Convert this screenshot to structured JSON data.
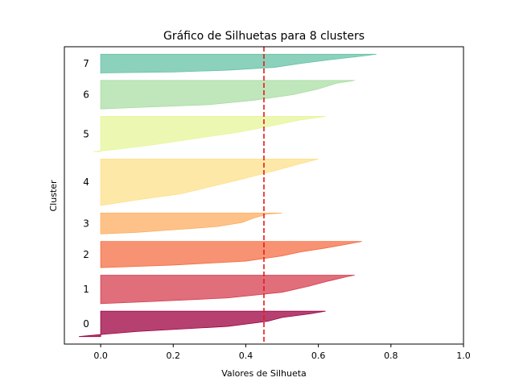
{
  "chart_data": {
    "type": "area",
    "title": "Gráfico de Silhuetas para 8 clusters",
    "xlabel": "Valores de Silhueta",
    "ylabel": "Cluster",
    "xlim": [
      -0.1,
      1.0
    ],
    "x_ticks": [
      0.0,
      0.2,
      0.4,
      0.6,
      0.8,
      1.0
    ],
    "x_tick_labels": [
      "0.0",
      "0.2",
      "0.4",
      "0.6",
      "0.8",
      "1.0"
    ],
    "grid": false,
    "average_silhouette": 0.45,
    "average_line": {
      "color": "#e41a1c",
      "style": "dashed"
    },
    "clusters": [
      {
        "label": "0",
        "color": "#9e0142",
        "size": 34,
        "profile": [
          [
            0.0,
            0.62
          ],
          [
            0.1,
            0.58
          ],
          [
            0.25,
            0.5
          ],
          [
            0.4,
            0.46
          ],
          [
            0.6,
            0.35
          ],
          [
            0.8,
            0.1
          ],
          [
            0.92,
            0.0
          ],
          [
            1.0,
            -0.06
          ]
        ]
      },
      {
        "label": "1",
        "color": "#d53e4f",
        "size": 38,
        "profile": [
          [
            0.0,
            0.7
          ],
          [
            0.05,
            0.68
          ],
          [
            0.2,
            0.63
          ],
          [
            0.4,
            0.57
          ],
          [
            0.6,
            0.5
          ],
          [
            0.8,
            0.35
          ],
          [
            0.92,
            0.15
          ],
          [
            1.0,
            0.0
          ]
        ]
      },
      {
        "label": "2",
        "color": "#f46d43",
        "size": 35,
        "profile": [
          [
            0.0,
            0.72
          ],
          [
            0.1,
            0.68
          ],
          [
            0.25,
            0.62
          ],
          [
            0.4,
            0.55
          ],
          [
            0.55,
            0.5
          ],
          [
            0.75,
            0.4
          ],
          [
            0.9,
            0.2
          ],
          [
            1.0,
            0.0
          ]
        ]
      },
      {
        "label": "3",
        "color": "#fdae61",
        "size": 28,
        "profile": [
          [
            0.0,
            0.5
          ],
          [
            0.05,
            0.46
          ],
          [
            0.25,
            0.42
          ],
          [
            0.45,
            0.39
          ],
          [
            0.65,
            0.32
          ],
          [
            0.8,
            0.2
          ],
          [
            0.92,
            0.1
          ],
          [
            1.0,
            0.0
          ]
        ]
      },
      {
        "label": "4",
        "color": "#fee08b",
        "size": 62,
        "profile": [
          [
            0.0,
            0.6
          ],
          [
            0.1,
            0.55
          ],
          [
            0.25,
            0.48
          ],
          [
            0.45,
            0.38
          ],
          [
            0.6,
            0.3
          ],
          [
            0.75,
            0.22
          ],
          [
            0.88,
            0.1
          ],
          [
            1.0,
            0.0
          ]
        ]
      },
      {
        "label": "5",
        "color": "#e6f598",
        "size": 47,
        "profile": [
          [
            0.0,
            0.62
          ],
          [
            0.1,
            0.55
          ],
          [
            0.25,
            0.48
          ],
          [
            0.45,
            0.38
          ],
          [
            0.6,
            0.28
          ],
          [
            0.8,
            0.15
          ],
          [
            0.95,
            0.03
          ],
          [
            1.0,
            -0.02
          ]
        ]
      },
      {
        "label": "6",
        "color": "#abdda4",
        "size": 38,
        "profile": [
          [
            0.0,
            0.7
          ],
          [
            0.1,
            0.65
          ],
          [
            0.3,
            0.6
          ],
          [
            0.5,
            0.53
          ],
          [
            0.7,
            0.42
          ],
          [
            0.85,
            0.3
          ],
          [
            0.95,
            0.1
          ],
          [
            1.0,
            0.0
          ]
        ]
      },
      {
        "label": "7",
        "color": "#66c2a5",
        "size": 25,
        "profile": [
          [
            0.0,
            0.76
          ],
          [
            0.1,
            0.72
          ],
          [
            0.3,
            0.63
          ],
          [
            0.5,
            0.55
          ],
          [
            0.7,
            0.48
          ],
          [
            0.85,
            0.35
          ],
          [
            0.95,
            0.2
          ],
          [
            1.0,
            0.0
          ]
        ]
      }
    ]
  }
}
